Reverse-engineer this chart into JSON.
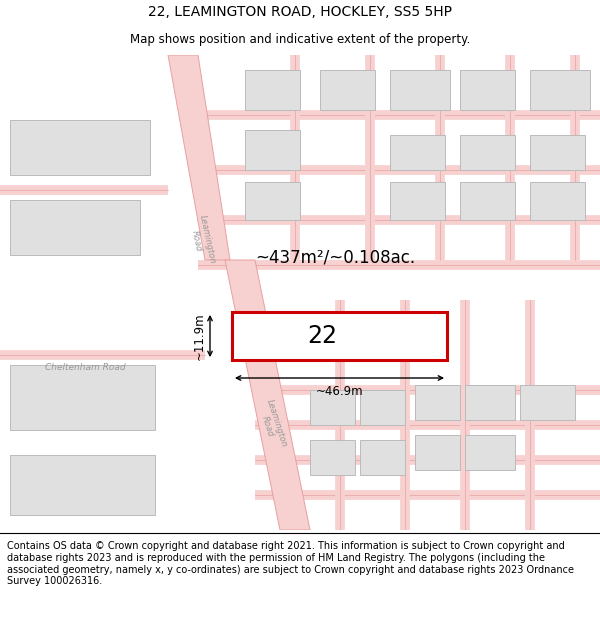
{
  "title": "22, LEAMINGTON ROAD, HOCKLEY, SS5 5HP",
  "subtitle": "Map shows position and indicative extent of the property.",
  "footer": "Contains OS data © Crown copyright and database right 2021. This information is subject to Crown copyright and database rights 2023 and is reproduced with the permission of HM Land Registry. The polygons (including the associated geometry, namely x, y co-ordinates) are subject to Crown copyright and database rights 2023 Ordnance Survey 100026316.",
  "area_label": "~437m²/~0.108ac.",
  "width_label": "~46.9m",
  "height_label": "~11.9m",
  "number_label": "22",
  "map_bg": "#f9f9f9",
  "road_fill": "#f7d0d0",
  "road_edge": "#e8a0a0",
  "building_fill": "#e0e0e0",
  "building_edge": "#bbbbbb",
  "highlight_color": "#cc0000",
  "road_text_color": "#999999",
  "title_fontsize": 10,
  "subtitle_fontsize": 8.5,
  "footer_fontsize": 7
}
